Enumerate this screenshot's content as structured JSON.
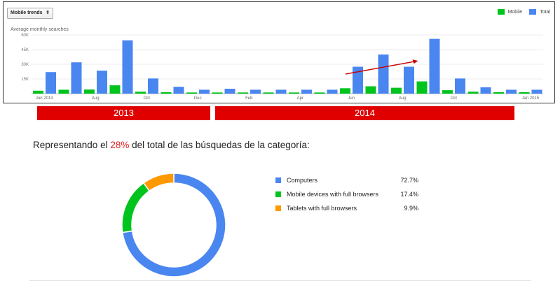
{
  "header": {
    "select_label": "Mobile trends",
    "y_title": "Average monthly searches"
  },
  "legend": [
    {
      "label": "Mobile",
      "color": "#00c41e"
    },
    {
      "label": "Total",
      "color": "#4a86f0"
    }
  ],
  "years": {
    "y2013": "2013",
    "y2014": "2014"
  },
  "share": {
    "prefix": "Representando el ",
    "pct": "28%",
    "suffix": " del total de las búsquedas de la categoría:"
  },
  "pie": {
    "items": [
      {
        "label": "Computers",
        "value_text": "72.7%",
        "value": 72.7,
        "color": "#4a86f0"
      },
      {
        "label": "Mobile devices with full browsers",
        "value_text": "17.4%",
        "value": 17.4,
        "color": "#00c41e"
      },
      {
        "label": "Tablets with full browsers",
        "value_text": "9.9%",
        "value": 9.9,
        "color": "#ff9900"
      }
    ]
  },
  "chart_data": [
    {
      "type": "bar",
      "title": "",
      "ylabel": "Average monthly searches",
      "ylim": [
        0,
        60000
      ],
      "yticks": [
        "15K",
        "30K",
        "45K",
        "60K"
      ],
      "ytick_values": [
        15000,
        30000,
        45000,
        60000
      ],
      "xtick_labels": [
        "Jun 2013",
        "Aug",
        "Oct",
        "Dec",
        "Feb",
        "Apr",
        "Jun",
        "Aug",
        "Oct",
        "Jan 2015"
      ],
      "xtick_indices": [
        0,
        2,
        4,
        6,
        8,
        10,
        12,
        14,
        16,
        19
      ],
      "categories": [
        "Jun 2013",
        "Jul 2013",
        "Aug 2013",
        "Sep 2013",
        "Oct 2013",
        "Nov 2013",
        "Dec 2013",
        "Jan 2014",
        "Feb 2014",
        "Mar 2014",
        "Apr 2014",
        "May 2014",
        "Jun 2014",
        "Jul 2014",
        "Aug 2014",
        "Sep 2014",
        "Oct 2014",
        "Nov 2014",
        "Dec 2014",
        "Jan 2015"
      ],
      "series": [
        {
          "name": "Mobile",
          "color": "#00c41e",
          "values": [
            3000,
            4000,
            4200,
            8500,
            2000,
            1500,
            1200,
            1200,
            1200,
            1200,
            1200,
            1200,
            5500,
            7500,
            6000,
            12500,
            3500,
            2000,
            1500,
            1500
          ]
        },
        {
          "name": "Total",
          "color": "#4a86f0",
          "values": [
            22000,
            32000,
            23500,
            54500,
            15500,
            7000,
            4000,
            5000,
            4000,
            4000,
            4000,
            4000,
            27500,
            40000,
            27500,
            56000,
            15500,
            6500,
            4000,
            4000
          ]
        }
      ],
      "grid": true,
      "legend_position": "top-right",
      "annotation": "trend-arrow"
    },
    {
      "type": "pie",
      "categories": [
        "Computers",
        "Mobile devices with full browsers",
        "Tablets with full browsers"
      ],
      "values": [
        72.7,
        17.4,
        9.9
      ],
      "legend_position": "right"
    }
  ]
}
